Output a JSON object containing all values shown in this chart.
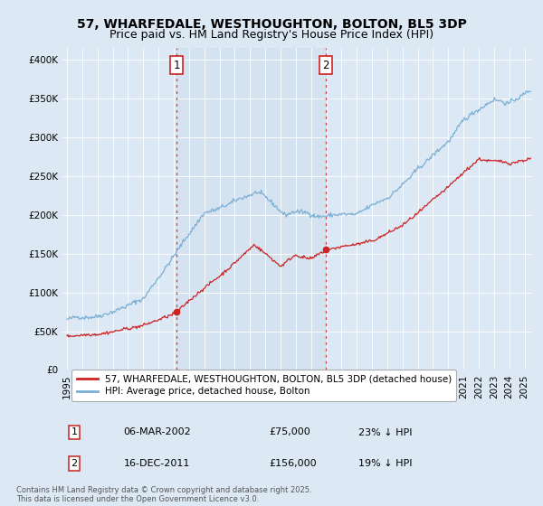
{
  "title": "57, WHARFEDALE, WESTHOUGHTON, BOLTON, BL5 3DP",
  "subtitle": "Price paid vs. HM Land Registry's House Price Index (HPI)",
  "background_color": "#dce9f5",
  "plot_bg_color": "#dce9f5",
  "ylabel_ticks": [
    "£0",
    "£50K",
    "£100K",
    "£150K",
    "£200K",
    "£250K",
    "£300K",
    "£350K",
    "£400K"
  ],
  "ytick_values": [
    0,
    50000,
    100000,
    150000,
    200000,
    250000,
    300000,
    350000,
    400000
  ],
  "ylim": [
    0,
    415000
  ],
  "xlim_start": 1994.7,
  "xlim_end": 2025.5,
  "hpi_color": "#7aafd4",
  "price_color": "#cc2222",
  "vline_color": "#cc4444",
  "vline_style": ":",
  "shading_color": "#c8d8eb",
  "marker1_date": 2002.18,
  "marker2_date": 2011.96,
  "marker1_price": 75000,
  "marker2_price": 156000,
  "legend_label_red": "57, WHARFEDALE, WESTHOUGHTON, BOLTON, BL5 3DP (detached house)",
  "legend_label_blue": "HPI: Average price, detached house, Bolton",
  "table_row1": [
    "1",
    "06-MAR-2002",
    "£75,000",
    "23% ↓ HPI"
  ],
  "table_row2": [
    "2",
    "16-DEC-2011",
    "£156,000",
    "19% ↓ HPI"
  ],
  "footnote": "Contains HM Land Registry data © Crown copyright and database right 2025.\nThis data is licensed under the Open Government Licence v3.0.",
  "title_fontsize": 10,
  "subtitle_fontsize": 9,
  "tick_fontsize": 7.5,
  "legend_fontsize": 7.5,
  "table_fontsize": 8
}
